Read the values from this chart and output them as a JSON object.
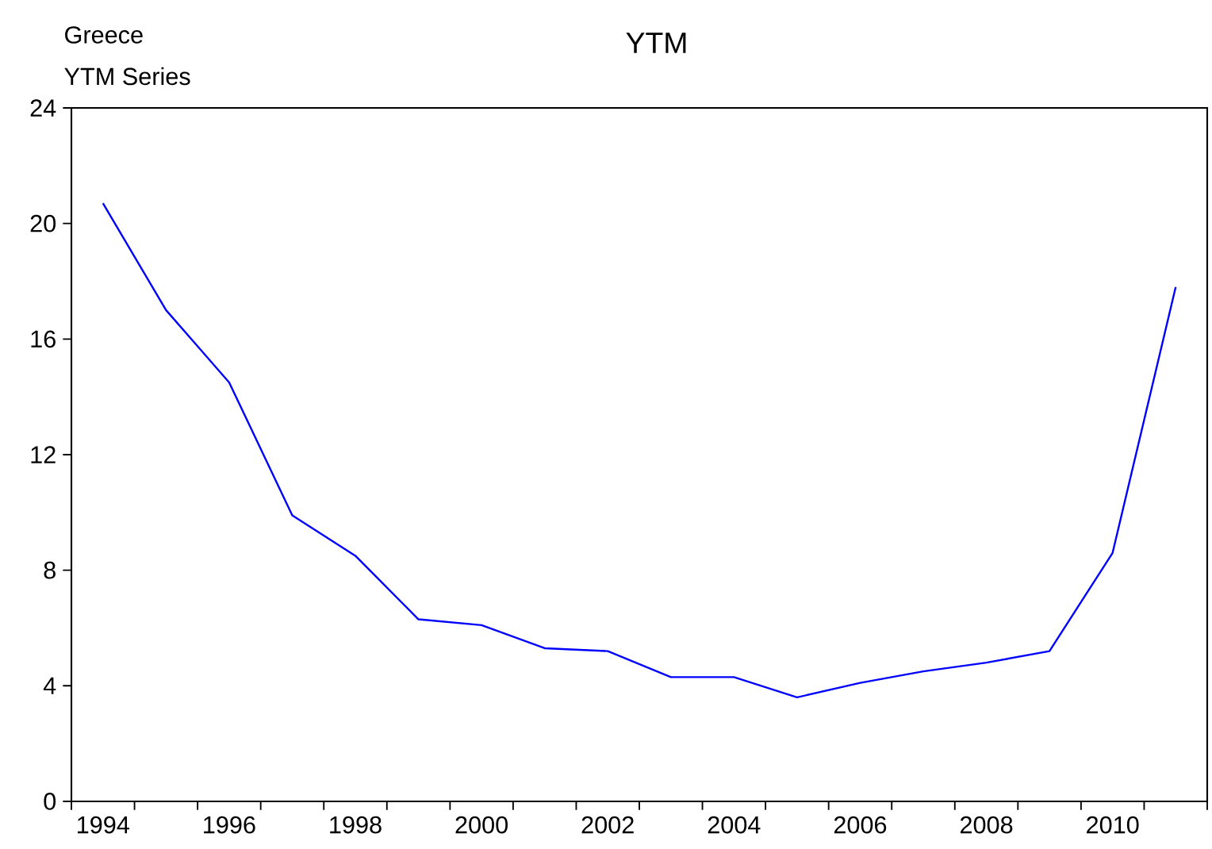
{
  "chart_data": {
    "type": "line",
    "title": "YTM",
    "annotations": [
      "Greece",
      "YTM Series"
    ],
    "categories": [
      "1994",
      null,
      "1996",
      null,
      "1998",
      null,
      "2000",
      null,
      "2002",
      null,
      "2004",
      null,
      "2006",
      null,
      "2008",
      null,
      "2010",
      null
    ],
    "series": [
      {
        "color": "#0000ff",
        "values": [
          20.7,
          17.0,
          14.5,
          9.9,
          8.5,
          6.3,
          6.1,
          5.3,
          5.2,
          4.3,
          4.3,
          3.6,
          4.1,
          4.5,
          4.8,
          5.2,
          8.6,
          17.8
        ]
      }
    ],
    "ylim": [
      0,
      24
    ],
    "yticks": [
      0,
      4,
      8,
      12,
      16,
      20,
      24
    ]
  }
}
